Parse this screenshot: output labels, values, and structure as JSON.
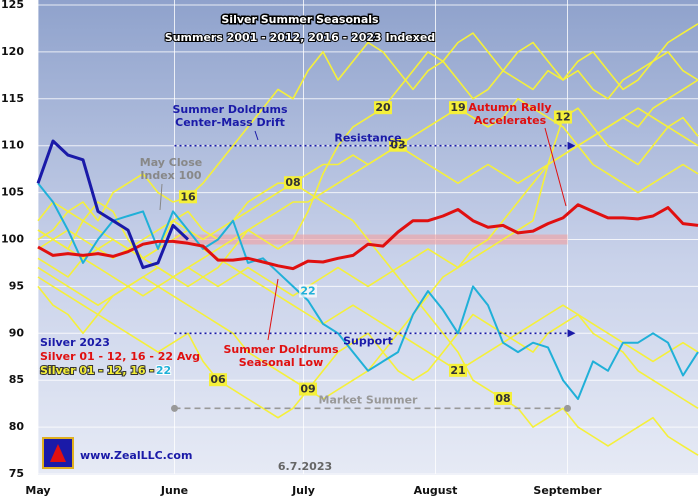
{
  "chart_data": {
    "type": "line",
    "title": "Silver Summer Seasonals",
    "subtitle": "Summers 2001 - 2012, 2016 - 2023 Indexed",
    "x": [
      0,
      1,
      2,
      3,
      4,
      5,
      6,
      7,
      8,
      9,
      10,
      11,
      12,
      13,
      14,
      15,
      16,
      17,
      18,
      19,
      20,
      21,
      22,
      23,
      24,
      25,
      26,
      27,
      28,
      29,
      30,
      31,
      32,
      33,
      34,
      35,
      36,
      37,
      38,
      39,
      40,
      41,
      42,
      43,
      44
    ],
    "xlim": [
      0,
      44
    ],
    "xticks": [
      {
        "value": 0,
        "label": "May"
      },
      {
        "value": 9.1,
        "label": "June"
      },
      {
        "value": 17.7,
        "label": "July"
      },
      {
        "value": 26.5,
        "label": "August"
      },
      {
        "value": 35.3,
        "label": "September"
      }
    ],
    "ylim": [
      75,
      125
    ],
    "yticks": [
      75,
      80,
      85,
      90,
      95,
      100,
      105,
      110,
      115,
      120,
      125
    ],
    "grid": true,
    "index_level": 100,
    "legend_text": "Silver 01 - 12, 16 - ",
    "series": [
      {
        "name": "Silver 2023",
        "color": "#1a1aa8",
        "values": [
          106,
          110.5,
          109,
          108.5,
          103,
          102,
          101,
          97,
          97.5,
          101.5,
          100,
          null,
          null,
          null,
          null,
          null,
          null,
          null,
          null,
          null,
          null,
          null,
          null,
          null,
          null,
          null,
          null,
          null,
          null,
          null,
          null,
          null,
          null,
          null,
          null,
          null,
          null,
          null,
          null,
          null,
          null,
          null,
          null,
          null,
          null
        ]
      },
      {
        "name": "Silver 01 - 12, 16 - 22 Avg",
        "color": "#e01010",
        "values": [
          99.2,
          98.3,
          98.5,
          98.3,
          98.5,
          98.2,
          98.7,
          99.5,
          99.8,
          99.8,
          99.6,
          99.3,
          97.8,
          97.8,
          98.0,
          97.6,
          97.2,
          96.9,
          97.7,
          97.6,
          98.0,
          98.3,
          99.5,
          99.3,
          100.8,
          102.0,
          102.0,
          102.5,
          103.2,
          102.0,
          101.3,
          101.5,
          100.7,
          100.9,
          101.7,
          102.3,
          103.7,
          103.0,
          102.3,
          102.3,
          102.2,
          102.5,
          103.4,
          101.7,
          101.5
        ]
      },
      {
        "name": "22",
        "color": "#20b0d8",
        "values": [
          106,
          104,
          101,
          97.5,
          100,
          102,
          102.5,
          103,
          99,
          103,
          101,
          99,
          100,
          102,
          97.5,
          98,
          96.5,
          95,
          93.5,
          91,
          90,
          88,
          86,
          87,
          88,
          92,
          94.5,
          92.5,
          90,
          95,
          93,
          89,
          88,
          89,
          88.5,
          85,
          83,
          87,
          86,
          89,
          89,
          90,
          89,
          85.5,
          88
        ]
      },
      {
        "name": "16",
        "color": "#f5f03a",
        "values": [
          100,
          101,
          103,
          104,
          102,
          105,
          106,
          107,
          105,
          104,
          104.5,
          106,
          108,
          110,
          112,
          114,
          116,
          115,
          118,
          120,
          117,
          119,
          121,
          120,
          118,
          116,
          118,
          119,
          117,
          115,
          116,
          118,
          120,
          121,
          119,
          117,
          118,
          116,
          115,
          117,
          118,
          119,
          120,
          118,
          117
        ]
      },
      {
        "name": "08",
        "color": "#f5f03a",
        "values": [
          101,
          100,
          99,
          102,
          104,
          103,
          100,
          98,
          99,
          102,
          103,
          101,
          100,
          102,
          104,
          105,
          106,
          106,
          105,
          104,
          103,
          102,
          100,
          98,
          96,
          94,
          92,
          90,
          88,
          85,
          84,
          83,
          82,
          80,
          81,
          82,
          80,
          79,
          78,
          79,
          80,
          81,
          79,
          78,
          77
        ]
      },
      {
        "name": "20",
        "color": "#f5f03a",
        "values": [
          95,
          93,
          92,
          90,
          92,
          94,
          95,
          96,
          97,
          96,
          95,
          96,
          97,
          99,
          101,
          100,
          99,
          100,
          103,
          107,
          110,
          112,
          113,
          114,
          116,
          118,
          120,
          119,
          121,
          122,
          120,
          118,
          117,
          116,
          118,
          117,
          119,
          120,
          118,
          116,
          117,
          119,
          121,
          122,
          123
        ]
      },
      {
        "name": "19",
        "color": "#f5f03a",
        "values": [
          98,
          97,
          96,
          98,
          99,
          100,
          99,
          98,
          97,
          96,
          97,
          98,
          99,
          100,
          101,
          102,
          103,
          104,
          104,
          105,
          106,
          107,
          108,
          109,
          110,
          111,
          112,
          113,
          114,
          113,
          112,
          113,
          115,
          114,
          113,
          112,
          110,
          111,
          112,
          113,
          114,
          113,
          112,
          111,
          110
        ]
      },
      {
        "name": "03",
        "color": "#f5f03a",
        "values": [
          99,
          100,
          101,
          100,
          99,
          98,
          99,
          100,
          101,
          102,
          101,
          100,
          101,
          102,
          103,
          104,
          105,
          106,
          107,
          108,
          108,
          109,
          108,
          109,
          110,
          109,
          108,
          107,
          106,
          107,
          108,
          107,
          106,
          107,
          108,
          109,
          110,
          108,
          107,
          106,
          105,
          106,
          107,
          108,
          107
        ]
      },
      {
        "name": "12",
        "color": "#f5f03a",
        "values": [
          101,
          100,
          99,
          98,
          97,
          96,
          95,
          94,
          95,
          96,
          97,
          96,
          95,
          96,
          97,
          96,
          95,
          94,
          95,
          96,
          97,
          96,
          95,
          96,
          97,
          98,
          99,
          98,
          97,
          98,
          99,
          100,
          101,
          102,
          108,
          113,
          114,
          112,
          110,
          109,
          108,
          110,
          112,
          113,
          111
        ]
      },
      {
        "name": "21",
        "color": "#f5f03a",
        "values": [
          102,
          104,
          103,
          102,
          101,
          100,
          99,
          98,
          99,
          100,
          101,
          99,
          98,
          97,
          96,
          95,
          94,
          93,
          92,
          91,
          92,
          93,
          92,
          91,
          90,
          89,
          88,
          87,
          86,
          87,
          88,
          89,
          90,
          91,
          92,
          93,
          92,
          91,
          90,
          89,
          88,
          87,
          88,
          89,
          88
        ]
      },
      {
        "name": "09",
        "color": "#f5f03a",
        "values": [
          97,
          96,
          95,
          94,
          93,
          94,
          95,
          96,
          95,
          94,
          93,
          92,
          91,
          90,
          88,
          87,
          86,
          85,
          84,
          83,
          84,
          85,
          86,
          88,
          90,
          92,
          94,
          96,
          97,
          99,
          100,
          102,
          104,
          106,
          108,
          109,
          110,
          111,
          112,
          113,
          112,
          114,
          115,
          116,
          117
        ]
      },
      {
        "name": "06",
        "color": "#f5f03a",
        "values": [
          96,
          95,
          94,
          93,
          92,
          91,
          90,
          89,
          88,
          89,
          90,
          87,
          85,
          84,
          83,
          82,
          81,
          82,
          84,
          86,
          88,
          89,
          90,
          88,
          86,
          85,
          86,
          88,
          90,
          92,
          91,
          90,
          89,
          88,
          90,
          91,
          92,
          90,
          89,
          88,
          86,
          85,
          84,
          83,
          82
        ]
      }
    ],
    "reference_lines": [
      {
        "label": "Resistance",
        "value": 110,
        "color": "#1a1aa8"
      },
      {
        "label": "Support",
        "value": 90,
        "color": "#1a1aa8"
      },
      {
        "label": "Market Summer",
        "value": 82,
        "color": "#999999"
      }
    ],
    "annotations": [
      {
        "lines": [
          "Summer Doldrums",
          "Center-Mass Drift"
        ],
        "color": "#1a1aa8"
      },
      {
        "lines": [
          "May Close",
          "Index 100"
        ],
        "color": "#888888"
      },
      {
        "lines": [
          "Autumn Rally",
          "Accelerates"
        ],
        "color": "#e01010"
      },
      {
        "lines": [
          "Summer Doldrums",
          "Seasonal Low"
        ],
        "color": "#e01010"
      }
    ],
    "website": "www.ZealLLC.com",
    "date": "6.7.2023"
  }
}
